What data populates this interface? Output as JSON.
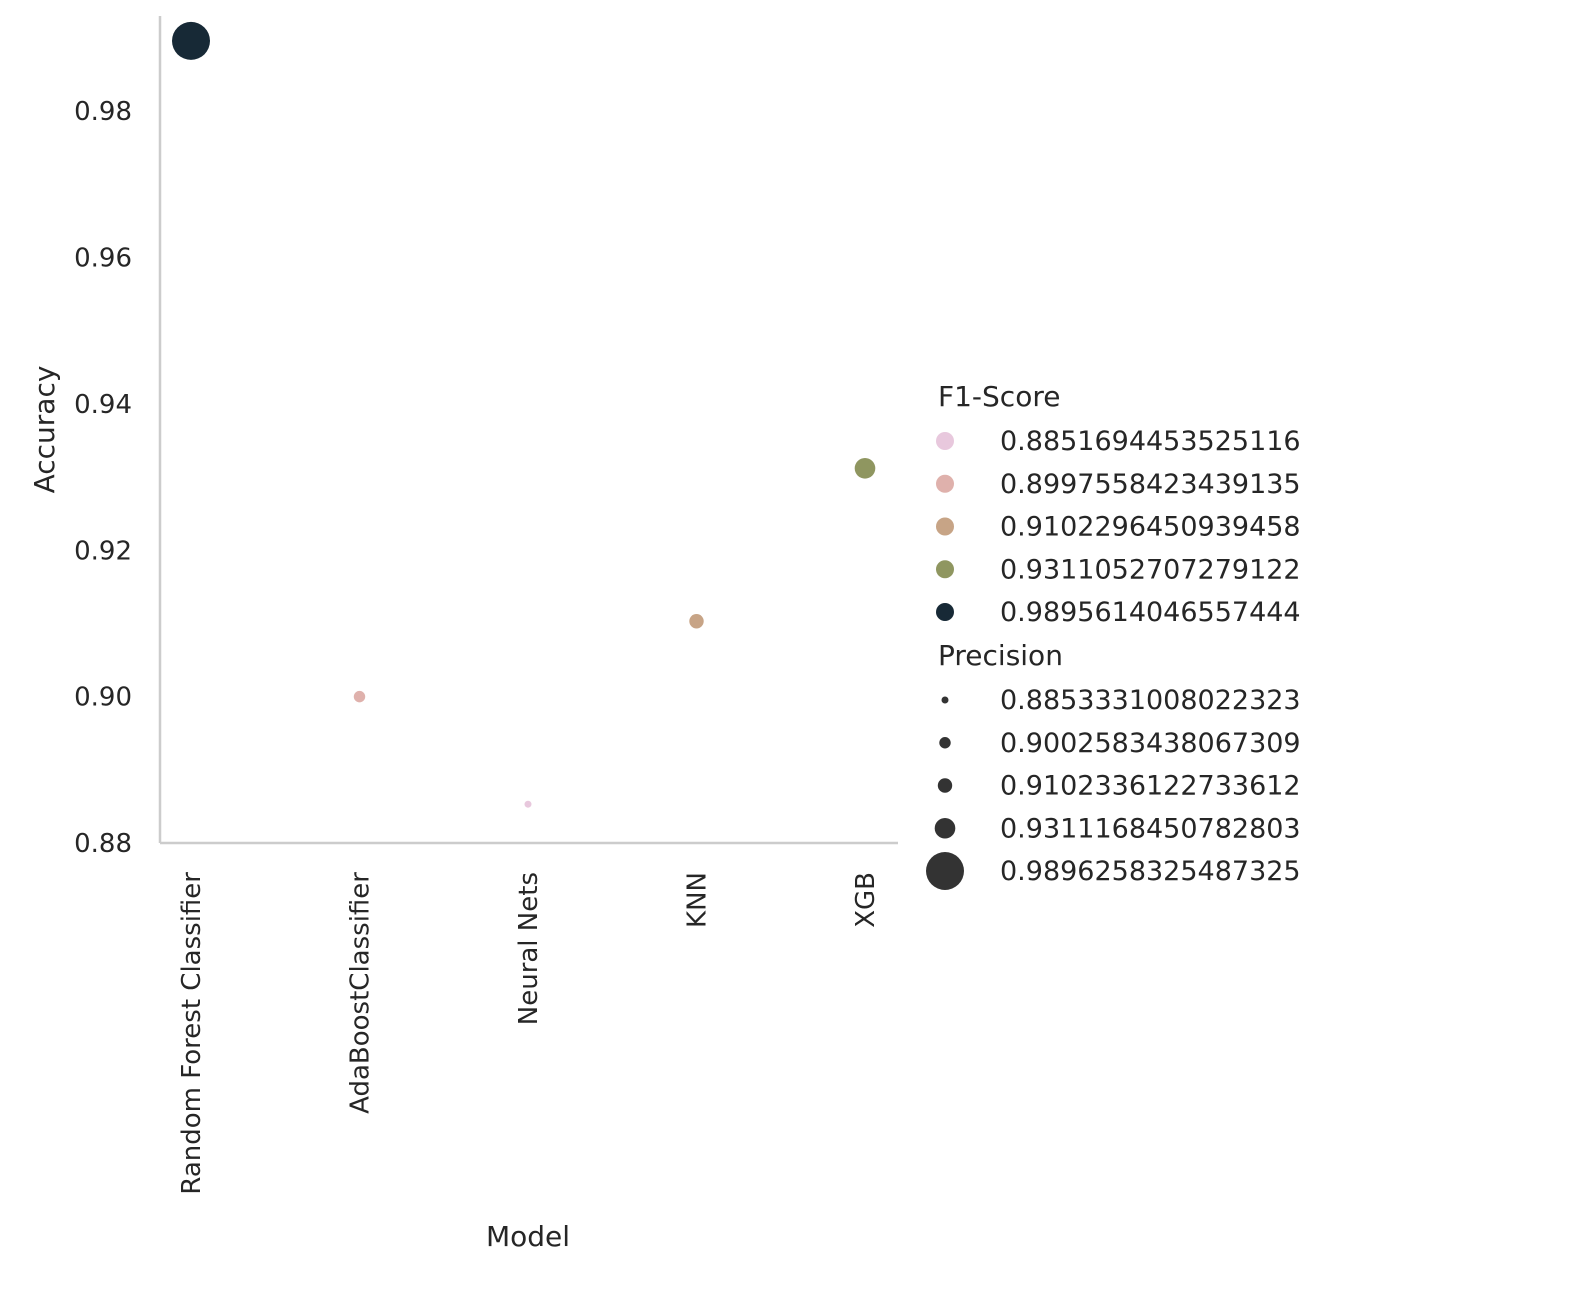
{
  "chart_data": {
    "type": "scatter",
    "title": "",
    "xlabel": "Model",
    "ylabel": "Accuracy",
    "categories": [
      "Random Forest Classifier",
      "AdaBoostClassifier",
      "Neural Nets",
      "KNN",
      "XGB"
    ],
    "points": [
      {
        "x": "Random Forest Classifier",
        "y": 0.9896,
        "f1": 0.9895614046557444,
        "precision": 0.9896258325487325
      },
      {
        "x": "AdaBoostClassifier",
        "y": 0.9,
        "f1": 0.8997558423439135,
        "precision": 0.9002583438067309
      },
      {
        "x": "Neural Nets",
        "y": 0.8853,
        "f1": 0.8851694453525116,
        "precision": 0.8853331008022323
      },
      {
        "x": "KNN",
        "y": 0.9103,
        "f1": 0.9102296450939458,
        "precision": 0.9102336122733612
      },
      {
        "x": "XGB",
        "y": 0.9312,
        "f1": 0.9311052707279122,
        "precision": 0.9311168450782803
      }
    ],
    "ylim": [
      0.88,
      0.993
    ],
    "yticks": [
      0.88,
      0.9,
      0.92,
      0.94,
      0.96,
      0.98
    ],
    "ytick_labels": [
      "0.88",
      "0.90",
      "0.92",
      "0.94",
      "0.96",
      "0.98"
    ],
    "grid": false,
    "legend_position": "right",
    "legend": {
      "hue_title": "F1-Score",
      "hue_entries": [
        {
          "label": "0.8851694453525116",
          "color": "#e8c8dd"
        },
        {
          "label": "0.8997558423439135",
          "color": "#dfb1ac"
        },
        {
          "label": "0.9102296450939458",
          "color": "#c7a486"
        },
        {
          "label": "0.9311052707279122",
          "color": "#8f9660"
        },
        {
          "label": "0.9895614046557444",
          "color": "#172936"
        }
      ],
      "size_title": "Precision",
      "size_entries": [
        {
          "label": "0.8853331008022323",
          "value": 0.8853331008022323
        },
        {
          "label": "0.9002583438067309",
          "value": 0.9002583438067309
        },
        {
          "label": "0.9102336122733612",
          "value": 0.9102336122733612
        },
        {
          "label": "0.9311168450782803",
          "value": 0.9311168450782803
        },
        {
          "label": "0.9896258325487325",
          "value": 0.9896258325487325
        }
      ],
      "size_marker_color": "#333333"
    },
    "spine_color": "#cccccc"
  }
}
